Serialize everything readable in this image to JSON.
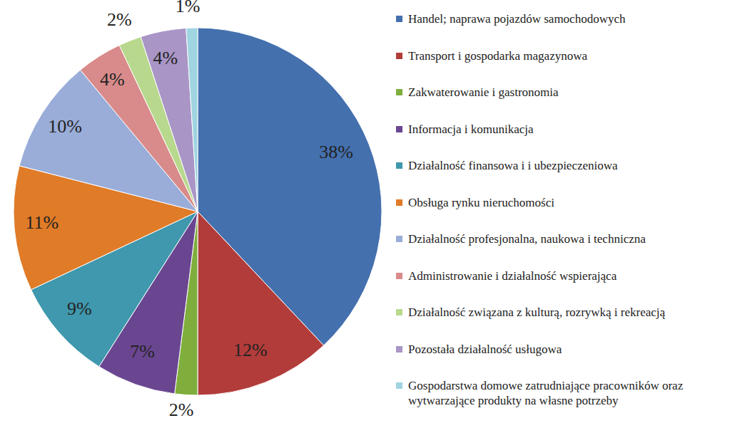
{
  "chart_data": {
    "type": "pie",
    "categories": [
      "Handel; naprawa pojazdów samochodowych",
      "Transport i gospodarka magazynowa",
      "Zakwaterowanie i gastronomia",
      "Informacja i komunikacja",
      "Działalność finansowa i i ubezpieczeniowa",
      "Obsługa rynku nieruchomości",
      "Działalność profesjonalna, naukowa i techniczna",
      "Administrowanie i działalność wspierająca",
      "Działalność związana z kulturą, rozrywką i rekreacją",
      "Pozostała działalność usługowa",
      "Gospodarstwa domowe zatrudniające pracowników oraz wytwarzające produkty na własne potrzeby"
    ],
    "values": [
      38,
      12,
      2,
      7,
      9,
      11,
      10,
      4,
      2,
      4,
      1
    ],
    "value_labels": [
      "38%",
      "12%",
      "2%",
      "7%",
      "9%",
      "11%",
      "10%",
      "4%",
      "2%",
      "4%",
      "1%"
    ],
    "colors": [
      "#4470ae",
      "#b23c3a",
      "#7fae3c",
      "#6a4691",
      "#3f98ad",
      "#e07b28",
      "#9aadd9",
      "#d88b8a",
      "#b8d98d",
      "#a995c6",
      "#9fd4e0"
    ],
    "data_labels": true,
    "legend": "right"
  }
}
